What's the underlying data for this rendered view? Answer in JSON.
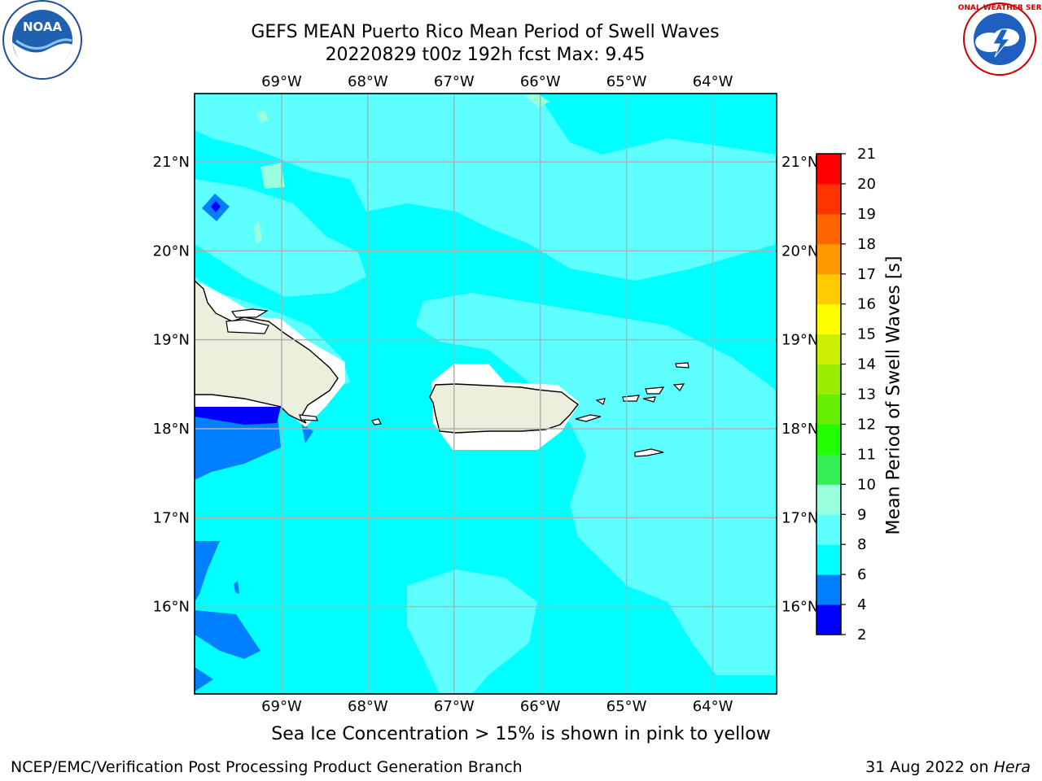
{
  "header": {
    "title_line1": "GEFS MEAN Puerto Rico Mean Period of Swell Waves",
    "title_line2": "20220829 t00z 192h fcst   Max: 9.45"
  },
  "logos": {
    "left": {
      "name": "NOAA",
      "text": "NOAA"
    },
    "right": {
      "name": "National Weather Service",
      "text": "NATIONAL WEATHER SERVICE"
    }
  },
  "map": {
    "lon_labels": [
      "69°W",
      "68°W",
      "67°W",
      "66°W",
      "65°W",
      "64°W"
    ],
    "lat_labels": [
      "21°N",
      "20°N",
      "19°N",
      "18°N",
      "17°N",
      "16°N"
    ],
    "lon_values": [
      -69,
      -68,
      -67,
      -66,
      -65,
      -64
    ],
    "lat_values": [
      21,
      20,
      19,
      18,
      17,
      16
    ],
    "extent": {
      "lon_min": -70.0,
      "lon_max": -63.25,
      "lat_min": 15.0,
      "lat_max": 21.75
    },
    "ocean_color": "#00ffff",
    "land_color": "#eeeedc"
  },
  "colorbar": {
    "label": "Mean Period of Swell Waves [s]",
    "tick_labels": [
      "2",
      "4",
      "6",
      "8",
      "9",
      "10",
      "11",
      "12",
      "13",
      "14",
      "15",
      "16",
      "17",
      "18",
      "19",
      "20",
      "21"
    ],
    "levels": [
      2,
      4,
      6,
      8,
      9,
      10,
      11,
      12,
      13,
      14,
      15,
      16,
      17,
      18,
      19,
      20,
      21
    ],
    "colors": [
      "#0000ff",
      "#0080ff",
      "#00ffff",
      "#60ffff",
      "#99ffdd",
      "#33ee55",
      "#22ff00",
      "#66ee00",
      "#99ee00",
      "#ccee00",
      "#ffff00",
      "#ffcc00",
      "#ff9900",
      "#ff6600",
      "#ff3300",
      "#ff0000"
    ]
  },
  "notes": {
    "sea_ice": "Sea Ice Concentration > 15% is shown in pink to yellow"
  },
  "footer": {
    "left": "NCEP/EMC/Verification Post Processing Product Generation Branch",
    "right_prefix": "31 Aug 2022 on ",
    "right_italic": "Hera"
  }
}
